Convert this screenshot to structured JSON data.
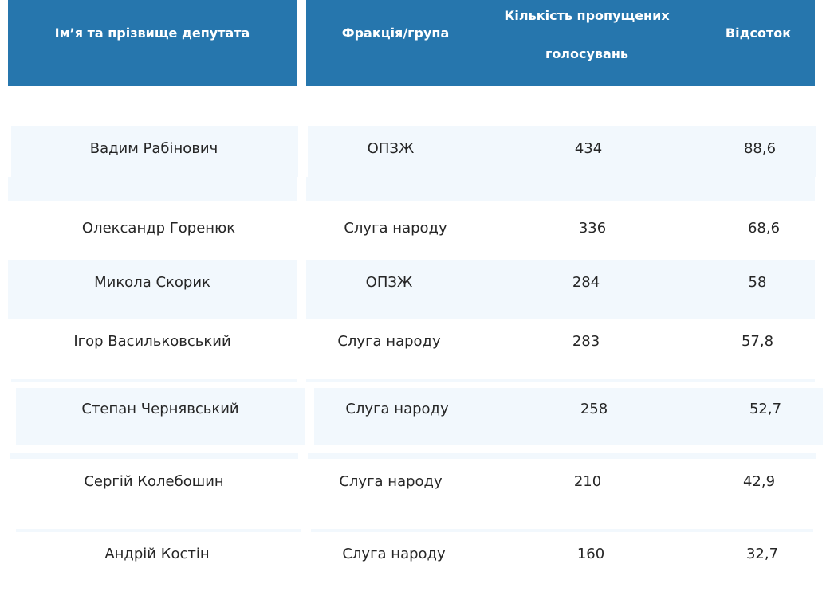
{
  "table": {
    "headers": {
      "name": "Ім’я та прізвище депутата",
      "faction": "Фракція/група",
      "missed": "Кількість пропущених голосувань",
      "percent": "Відсоток"
    },
    "header_color": "#2676ad",
    "row_band_color": "#f2f8fd",
    "rows": [
      {
        "name": "Вадим Рабінович",
        "faction": "ОПЗЖ",
        "missed": "434",
        "percent": "88,6"
      },
      {
        "name": "Олександр Горенюк",
        "faction": "Слуга народу",
        "missed": "336",
        "percent": "68,6"
      },
      {
        "name": "Микола Скорик",
        "faction": "ОПЗЖ",
        "missed": "284",
        "percent": "58"
      },
      {
        "name": "Ігор Васильковський",
        "faction": "Слуга народу",
        "missed": "283",
        "percent": "57,8"
      },
      {
        "name": "Степан Чернявський",
        "faction": "Слуга народу",
        "missed": "258",
        "percent": "52,7"
      },
      {
        "name": "Сергій Колебошин",
        "faction": "Слуга народу",
        "missed": "210",
        "percent": "42,9"
      },
      {
        "name": "Андрій Костін",
        "faction": "Слуга народу",
        "missed": "160",
        "percent": "32,7"
      }
    ]
  },
  "chart_data": {
    "type": "table",
    "columns": [
      "Ім’я та прізвище депутата",
      "Фракція/група",
      "Кількість пропущених голосувань",
      "Відсоток"
    ],
    "rows": [
      [
        "Вадим Рабінович",
        "ОПЗЖ",
        434,
        88.6
      ],
      [
        "Олександр Горенюк",
        "Слуга народу",
        336,
        68.6
      ],
      [
        "Микола Скорик",
        "ОПЗЖ",
        284,
        58
      ],
      [
        "Ігор Васильковський",
        "Слуга народу",
        283,
        57.8
      ],
      [
        "Степан Чернявський",
        "Слуга народу",
        258,
        52.7
      ],
      [
        "Сергій Колебошин",
        "Слуга народу",
        210,
        42.9
      ],
      [
        "Андрій Костін",
        "Слуга народу",
        160,
        32.7
      ]
    ]
  }
}
